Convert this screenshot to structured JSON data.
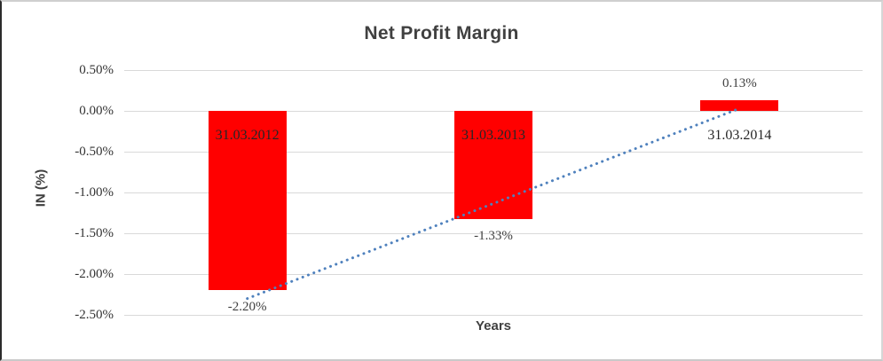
{
  "chart_data": {
    "type": "bar",
    "title": "Net Profit Margin",
    "xlabel": "Years",
    "ylabel": "IN (%)",
    "categories": [
      "31.03.2012",
      "31.03.2013",
      "31.03.2014"
    ],
    "values": [
      -2.2,
      -1.33,
      0.13
    ],
    "data_labels": [
      "-2.20%",
      "-1.33%",
      "0.13%"
    ],
    "yticks": [
      {
        "label": "0.50%",
        "value": 0.5
      },
      {
        "label": "0.00%",
        "value": 0.0
      },
      {
        "label": "-0.50%",
        "value": -0.5
      },
      {
        "label": "-1.00%",
        "value": -1.0
      },
      {
        "label": "-1.50%",
        "value": -1.5
      },
      {
        "label": "-2.00%",
        "value": -2.0
      },
      {
        "label": "-2.50%",
        "value": -2.5
      }
    ],
    "ylim": [
      -2.5,
      0.5
    ],
    "grid": true,
    "legend": false,
    "trendline": {
      "type": "linear",
      "style": "dotted",
      "start_value": -2.3,
      "end_value": 0.03
    },
    "colors": {
      "bar": "#FF0000",
      "trendline": "#4F81BD",
      "gridline": "#D9D9D9",
      "title_text": "#404040",
      "label_text": "#262626"
    }
  }
}
